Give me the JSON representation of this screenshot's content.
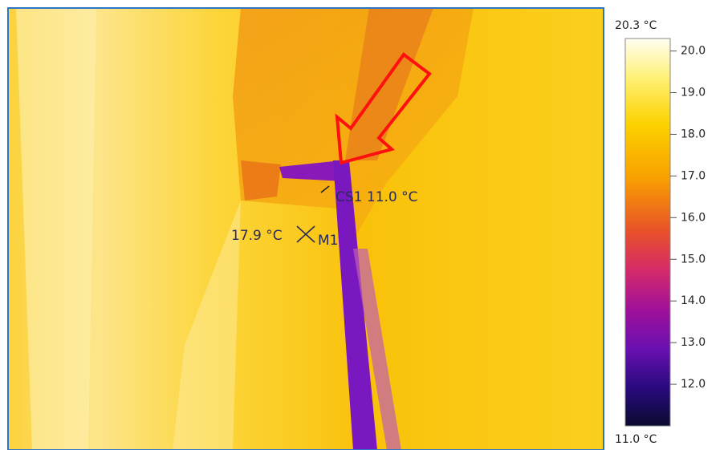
{
  "image": {
    "annotations": {
      "spot_cs1": "CS1 11.0 °C",
      "spot_m1_value": "17.9 °C",
      "spot_m1_name": "M1"
    }
  },
  "colorbar": {
    "max": {
      "value": 20.3,
      "label": "20.3 °C"
    },
    "min": {
      "value": 11.0,
      "label": "11.0 °C"
    },
    "ticks": [
      {
        "value": 20,
        "label": "20.0"
      },
      {
        "value": 19,
        "label": "19.0"
      },
      {
        "value": 18,
        "label": "18.0"
      },
      {
        "value": 17,
        "label": "17.0"
      },
      {
        "value": 16,
        "label": "16.0"
      },
      {
        "value": 15,
        "label": "15.0"
      },
      {
        "value": 14,
        "label": "14.0"
      },
      {
        "value": 13,
        "label": "13.0"
      },
      {
        "value": 12,
        "label": "12.0"
      }
    ]
  }
}
